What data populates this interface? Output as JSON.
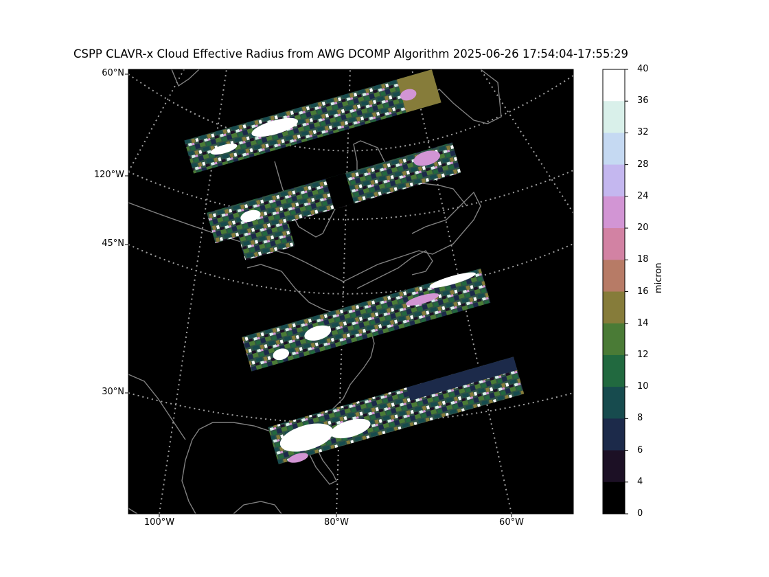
{
  "title": "CSPP CLAVR-x Cloud Effective Radius from AWG DCOMP Algorithm 2025-06-26 17:54:04-17:55:29",
  "map": {
    "lat_labels": [
      "60°N",
      "45°N",
      "30°N"
    ],
    "lon_left_labels": [
      "120°W"
    ],
    "lon_bottom_labels": [
      "100°W",
      "80°W",
      "60°W"
    ],
    "background": "#000000",
    "coastline_color": "#808080",
    "graticule_color": "#a0a0a0",
    "swath_count": 4
  },
  "colorbar": {
    "unit": "micron",
    "ticks": [
      "40",
      "36",
      "32",
      "28",
      "24",
      "20",
      "18",
      "16",
      "14",
      "12",
      "10",
      "8",
      "6",
      "4",
      "0"
    ],
    "colors": [
      "#ffffff",
      "#d9f0ea",
      "#c5d9f2",
      "#c4b7ef",
      "#d295d4",
      "#d282a3",
      "#b77b66",
      "#867c3a",
      "#4a7b36",
      "#21693f",
      "#174b4e",
      "#1c2a4a",
      "#1c1025",
      "#000000"
    ]
  }
}
